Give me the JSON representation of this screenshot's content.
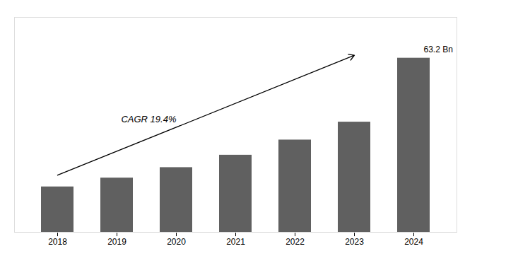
{
  "chart_data": {
    "type": "bar",
    "categories": [
      "2018",
      "2019",
      "2020",
      "2021",
      "2022",
      "2023",
      "2024"
    ],
    "values": [
      16.5,
      19.7,
      23.5,
      28.0,
      33.5,
      40.0,
      63.2
    ],
    "color": "#606060",
    "ylim": [
      0,
      78
    ],
    "grid": false,
    "tick_labels": "x",
    "annotations": [
      "63.2 Bn",
      "CAGR 19.4%"
    ]
  }
}
